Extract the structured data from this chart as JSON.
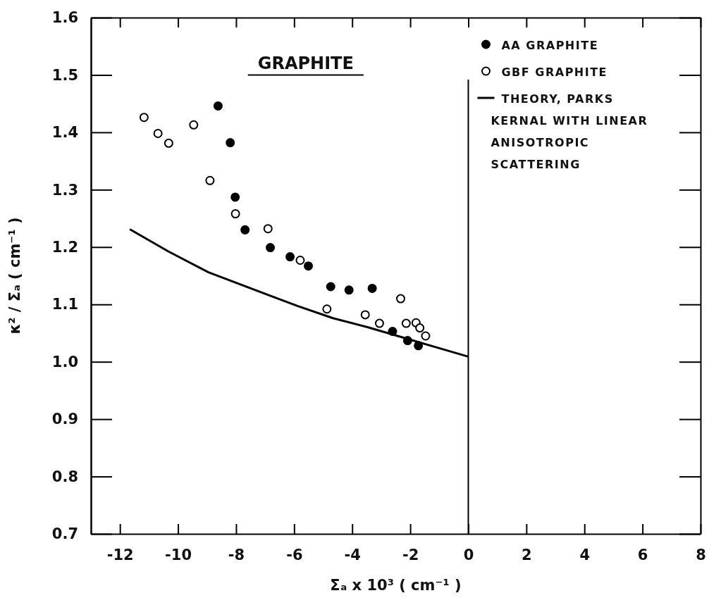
{
  "chart_data": {
    "type": "scatter",
    "title": "GRAPHITE",
    "xlabel": "Σₐ x 10³ ( cm⁻¹ )",
    "ylabel": "κ² / Σₐ ( cm⁻¹ )",
    "xlim": [
      -13,
      8
    ],
    "xticks": [
      -12,
      -10,
      -8,
      -6,
      -4,
      -2,
      0,
      2,
      4,
      6,
      8
    ],
    "ylim": [
      0.7,
      1.6
    ],
    "yticks": [
      0.7,
      0.8,
      0.9,
      {
        "value": 1,
        "label": "1.0"
      },
      1.1,
      1.2,
      1.3,
      1.4,
      1.5,
      1.6
    ],
    "grid": false,
    "legend": "top right",
    "ref_lines": [
      {
        "axis": "x",
        "value": 0,
        "color": "#000000"
      }
    ],
    "series": [
      {
        "name": "AA GRAPHITE",
        "marker": "circle",
        "color": "#000000",
        "x": [
          -8.62,
          -8.2,
          -8.03,
          -7.69,
          -6.82,
          -6.14,
          -5.51,
          -4.74,
          -4.11,
          -3.31,
          -2.61,
          -2.09,
          -1.72
        ],
        "values": [
          1.446,
          1.382,
          1.287,
          1.23,
          1.199,
          1.183,
          1.167,
          1.131,
          1.125,
          1.128,
          1.053,
          1.037,
          1.028
        ]
      },
      {
        "name": "GBF GRAPHITE",
        "marker": "circle",
        "color": "#ffffff",
        "x": [
          -11.17,
          -10.69,
          -10.32,
          -9.46,
          -8.9,
          -8.02,
          -6.9,
          -5.79,
          -4.87,
          -3.55,
          -3.06,
          -2.33,
          -2.14,
          -1.8,
          -1.67,
          -1.47
        ],
        "values": [
          1.426,
          1.398,
          1.381,
          1.413,
          1.316,
          1.258,
          1.232,
          1.177,
          1.092,
          1.082,
          1.067,
          1.11,
          1.067,
          1.068,
          1.059,
          1.045
        ]
      },
      {
        "name": "THEORY, PARKS KERNAL WITH LINEAR ANISOTROPIC SCATTERING",
        "type": "line",
        "marker": "none",
        "line_style": "solid",
        "color": "#000000",
        "x": [
          -11.66,
          -10.32,
          -8.95,
          -6.92,
          -5.87,
          -4.66,
          -3.45,
          -2.23,
          -1.02,
          0
        ],
        "values": [
          1.231,
          1.192,
          1.156,
          1.117,
          1.097,
          1.076,
          1.06,
          1.042,
          1.024,
          1.009
        ]
      }
    ]
  }
}
